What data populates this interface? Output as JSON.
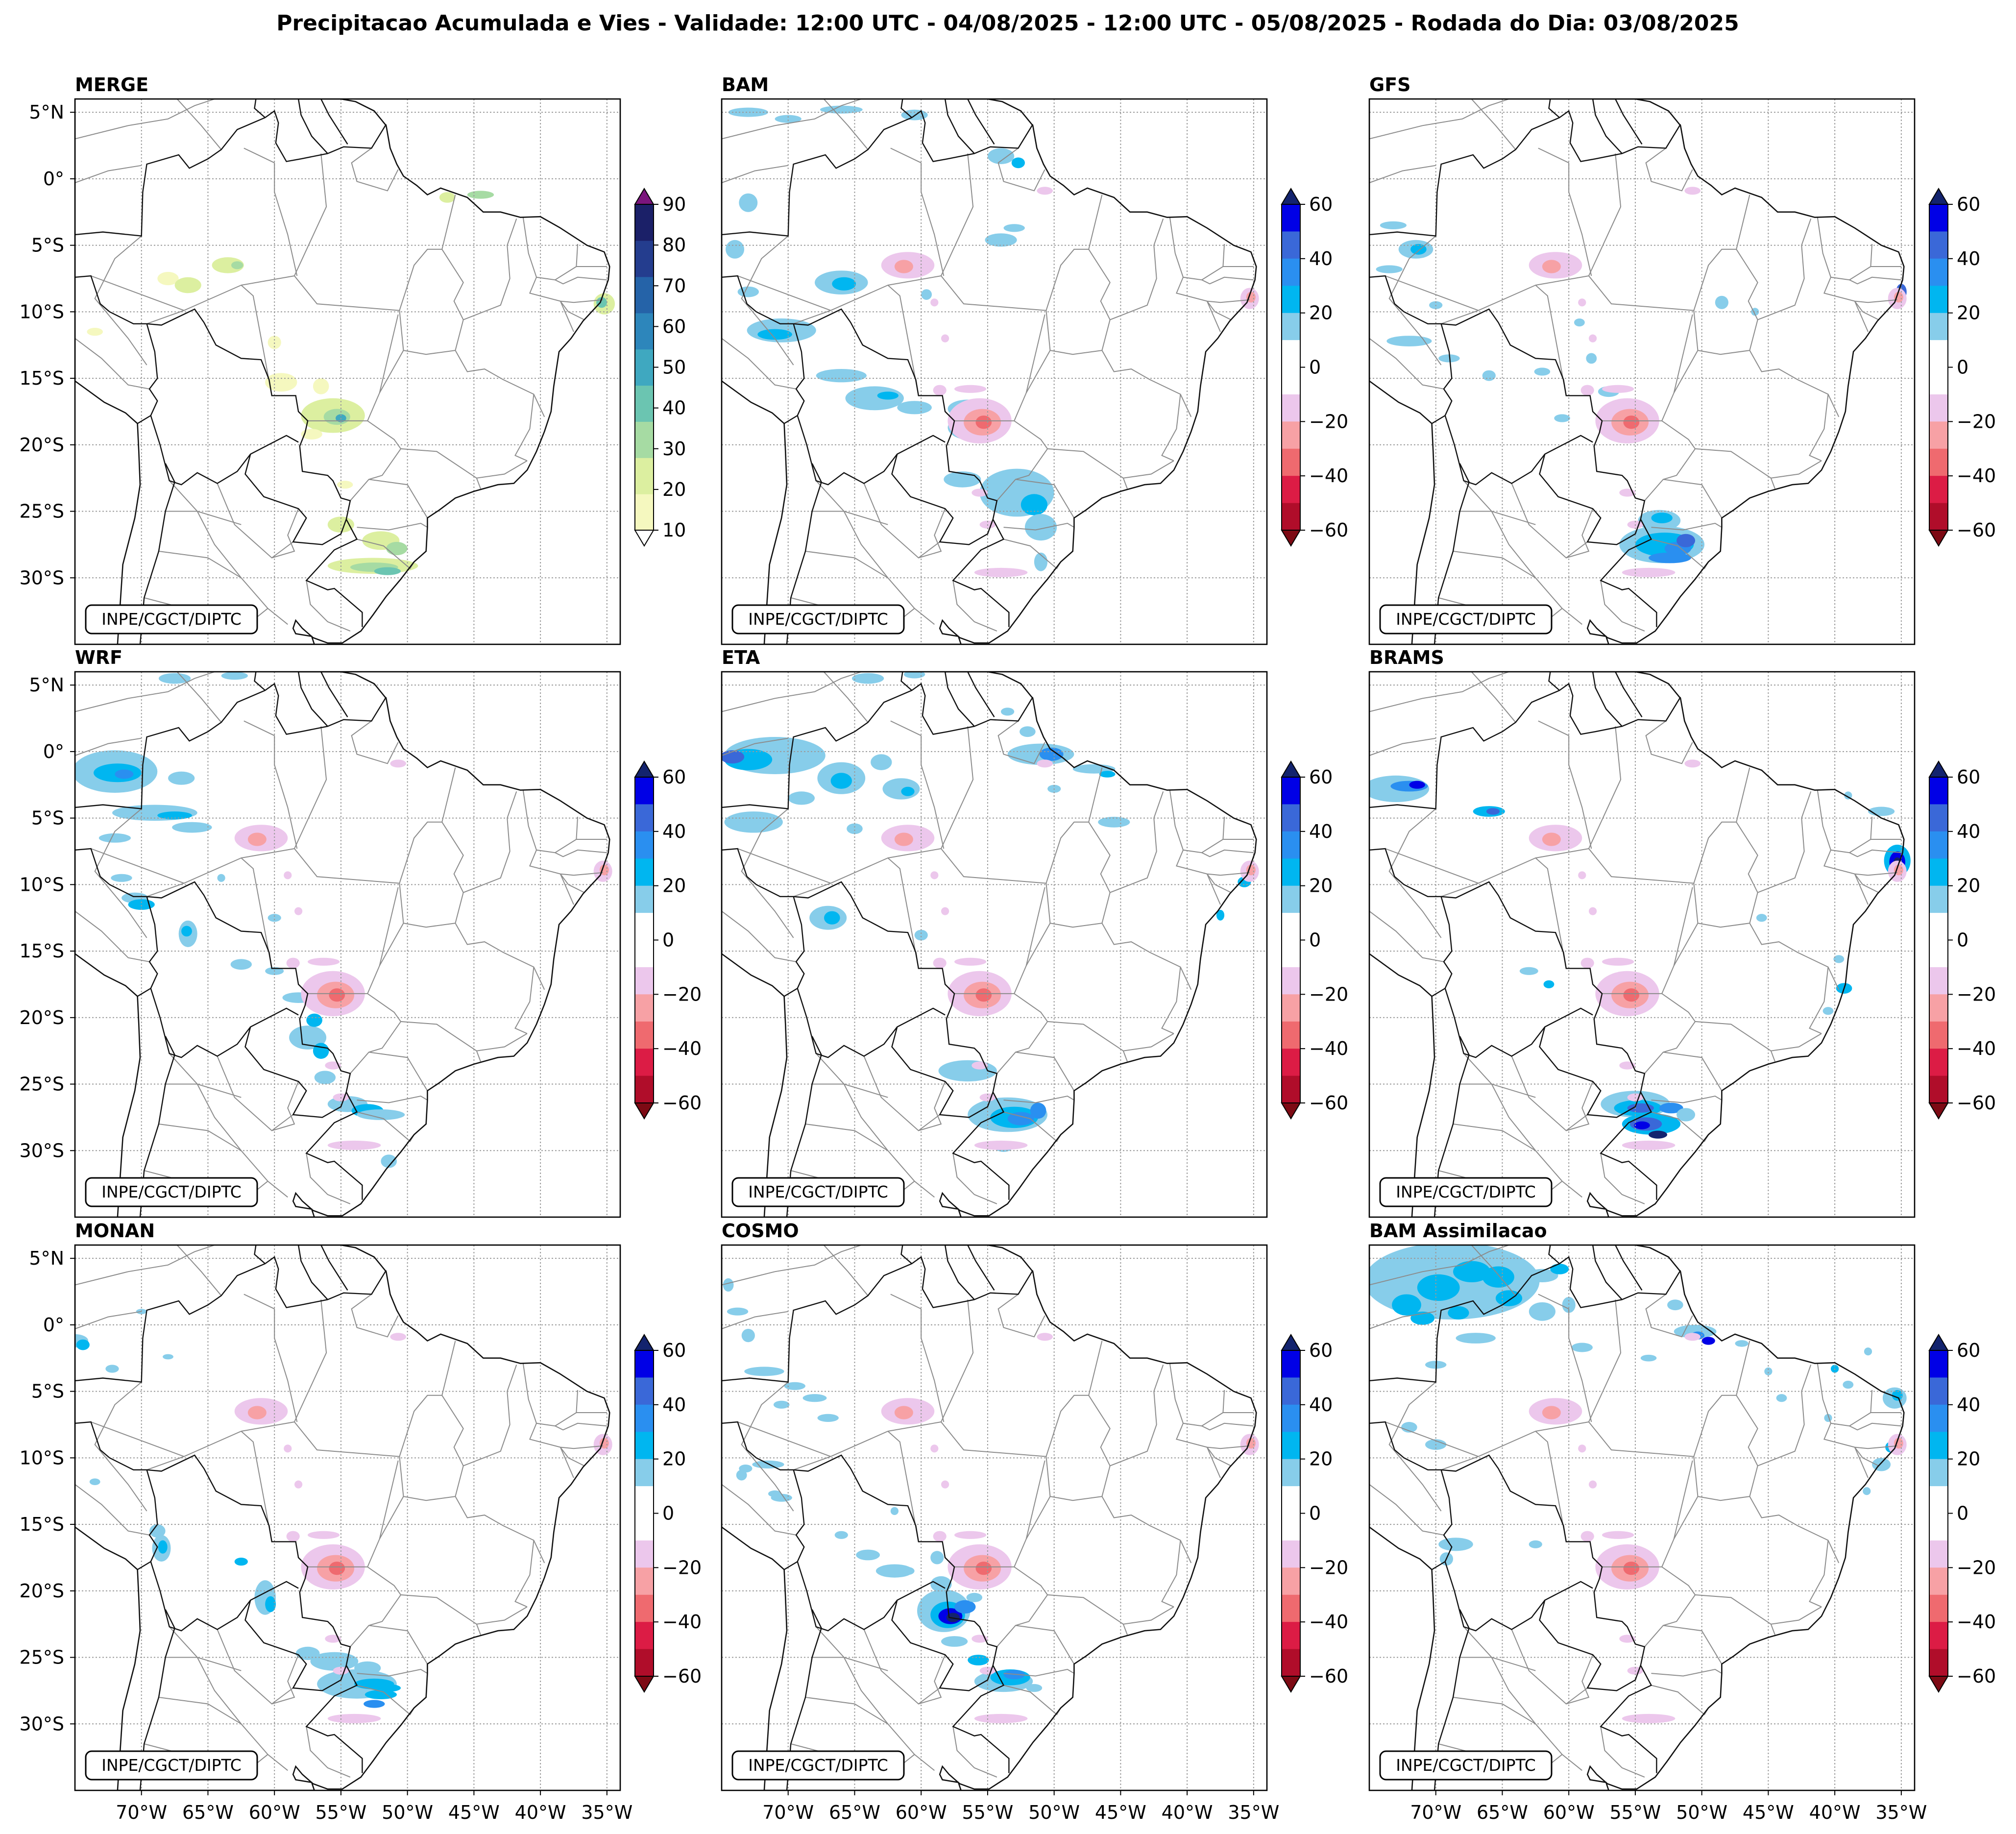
{
  "figure": {
    "title": "Precipitacao Acumulada e Vies - Validade: 12:00 UTC - 04/08/2025 - 12:00 UTC - 05/08/2025 - Rodada do Dia: 03/08/2025",
    "credit": "INPE/CGCT/DIPTC",
    "lat_ticks": [
      "5°N",
      "0°",
      "5°S",
      "10°S",
      "15°S",
      "20°S",
      "25°S",
      "30°S"
    ],
    "lon_ticks": [
      "70°W",
      "65°W",
      "60°W",
      "55°W",
      "50°W",
      "45°W",
      "40°W",
      "35°W"
    ]
  },
  "colorbars": {
    "precip": {
      "ticks": [
        "10",
        "20",
        "30",
        "40",
        "50",
        "60",
        "70",
        "80",
        "90"
      ],
      "colors": [
        "#f5f8bf",
        "#dcefa0",
        "#a6dba3",
        "#6bc5b1",
        "#3fa8c0",
        "#2d86bb",
        "#2563a8",
        "#243d8e",
        "#1b2068"
      ],
      "extend_low": "#ffffff",
      "extend_high": "#7b157d"
    },
    "bias": {
      "ticks": [
        "60",
        "40",
        "20",
        "0",
        "−20",
        "−40",
        "−60"
      ],
      "colors": [
        "#0000e6",
        "#3a68d8",
        "#2a8ff0",
        "#00b6f0",
        "#87cdea",
        "#ffffff",
        "#ffffff",
        "#ecc7ec",
        "#f7a1a5",
        "#ef6a6f",
        "#dc1c45",
        "#b00d2a"
      ],
      "extend_high": "#13236e",
      "extend_low": "#7d0a14"
    }
  },
  "panels": [
    {
      "id": "merge",
      "name": "MERGE",
      "colorbar": "precip",
      "show_lat": true,
      "show_lon": false
    },
    {
      "id": "bam",
      "name": "BAM",
      "colorbar": "bias",
      "show_lat": false,
      "show_lon": false
    },
    {
      "id": "gfs",
      "name": "GFS",
      "colorbar": "bias",
      "show_lat": false,
      "show_lon": false
    },
    {
      "id": "wrf",
      "name": "WRF",
      "colorbar": "bias",
      "show_lat": true,
      "show_lon": false
    },
    {
      "id": "eta",
      "name": "ETA",
      "colorbar": "bias",
      "show_lat": false,
      "show_lon": false
    },
    {
      "id": "brams",
      "name": "BRAMS",
      "colorbar": "bias",
      "show_lat": false,
      "show_lon": false
    },
    {
      "id": "monan",
      "name": "MONAN",
      "colorbar": "bias",
      "show_lat": true,
      "show_lon": true
    },
    {
      "id": "cosmo",
      "name": "COSMO",
      "colorbar": "bias",
      "show_lat": false,
      "show_lon": true
    },
    {
      "id": "bam-assim",
      "name": "BAM Assimilacao",
      "colorbar": "bias",
      "show_lat": false,
      "show_lon": true
    }
  ]
}
